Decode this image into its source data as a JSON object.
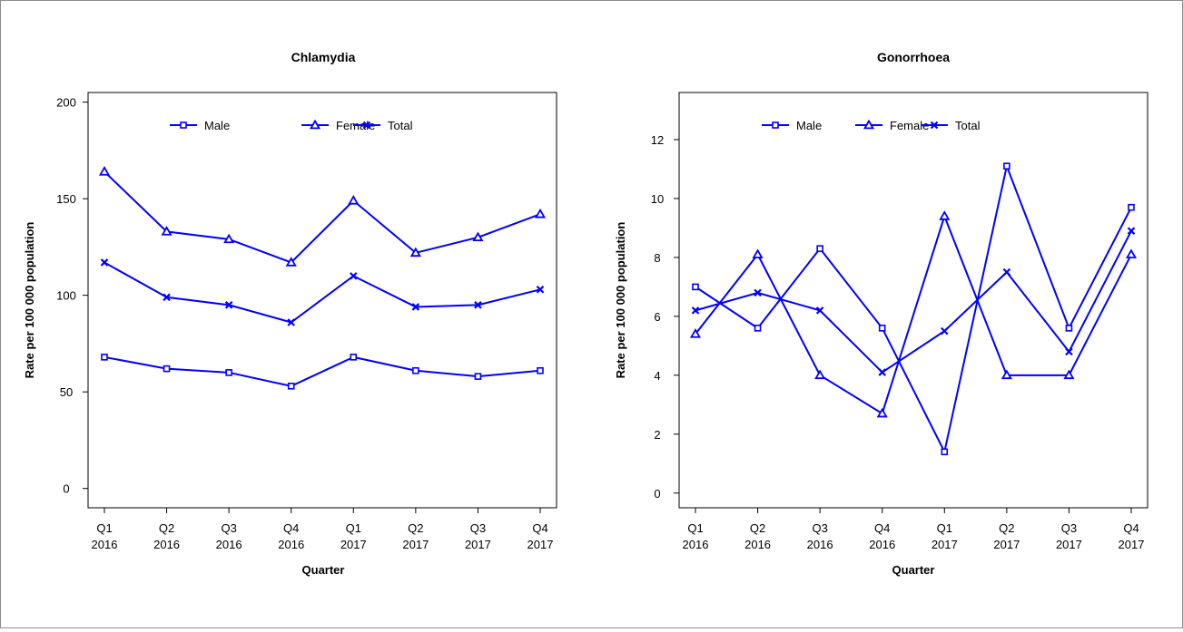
{
  "chart_data": [
    {
      "type": "line",
      "title": "Chlamydia",
      "xlabel": "Quarter",
      "ylabel": "Rate per 100 000 population",
      "categories": [
        [
          "Q1",
          "2016"
        ],
        [
          "Q2",
          "2016"
        ],
        [
          "Q3",
          "2016"
        ],
        [
          "Q4",
          "2016"
        ],
        [
          "Q1",
          "2017"
        ],
        [
          "Q2",
          "2017"
        ],
        [
          "Q3",
          "2017"
        ],
        [
          "Q4",
          "2017"
        ]
      ],
      "ylim": [
        -10,
        205
      ],
      "yticks": [
        0,
        50,
        100,
        150,
        200
      ],
      "legend_position": "top",
      "grid": false,
      "series": [
        {
          "name": "Male",
          "marker": "square",
          "values": [
            68,
            62,
            60,
            53,
            68,
            61,
            58,
            61
          ]
        },
        {
          "name": "Female",
          "marker": "triangle",
          "values": [
            164,
            133,
            129,
            117,
            149,
            122,
            130,
            142
          ]
        },
        {
          "name": "Total",
          "marker": "cross",
          "values": [
            117,
            99,
            95,
            86,
            110,
            94,
            95,
            103
          ]
        }
      ]
    },
    {
      "type": "line",
      "title": "Gonorrhoea",
      "xlabel": "Quarter",
      "ylabel": "Rate per 100 000 population",
      "categories": [
        [
          "Q1",
          "2016"
        ],
        [
          "Q2",
          "2016"
        ],
        [
          "Q3",
          "2016"
        ],
        [
          "Q4",
          "2016"
        ],
        [
          "Q1",
          "2017"
        ],
        [
          "Q2",
          "2017"
        ],
        [
          "Q3",
          "2017"
        ],
        [
          "Q4",
          "2017"
        ]
      ],
      "ylim": [
        -0.5,
        13.6
      ],
      "yticks": [
        0,
        2,
        4,
        6,
        8,
        10,
        12
      ],
      "legend_position": "top",
      "grid": false,
      "series": [
        {
          "name": "Male",
          "marker": "square",
          "values": [
            7.0,
            5.6,
            8.3,
            5.6,
            1.4,
            11.1,
            5.6,
            9.7
          ]
        },
        {
          "name": "Female",
          "marker": "triangle",
          "values": [
            5.4,
            8.1,
            4.0,
            2.7,
            9.4,
            4.0,
            4.0,
            8.1
          ]
        },
        {
          "name": "Total",
          "marker": "cross",
          "values": [
            6.2,
            6.8,
            6.2,
            4.1,
            5.5,
            7.5,
            4.8,
            8.9
          ]
        }
      ]
    }
  ],
  "colors": {
    "series": "#0000ff",
    "axis": "#000000",
    "frame": "#8c8c8c"
  }
}
